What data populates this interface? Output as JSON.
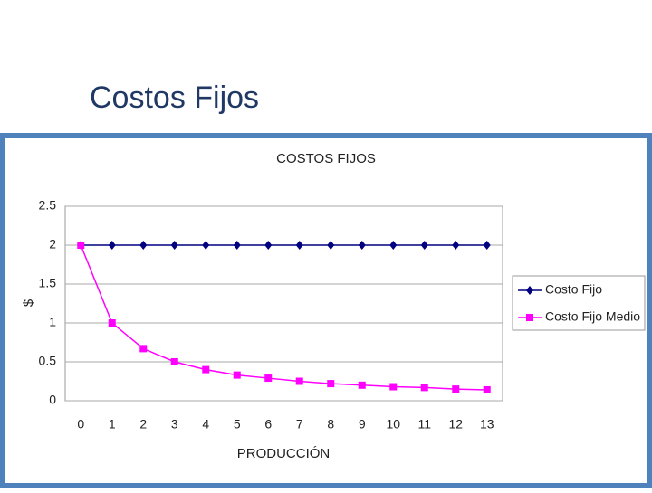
{
  "slide_title": "Costos Fijos",
  "chart_data": {
    "type": "line",
    "title": "COSTOS FIJOS",
    "x_label": "PRODUCCIÓN",
    "y_label": "$",
    "categories": [
      "0",
      "1",
      "2",
      "3",
      "4",
      "5",
      "6",
      "7",
      "8",
      "9",
      "10",
      "11",
      "12",
      "13"
    ],
    "series": [
      {
        "name": "Costo Fijo",
        "color": "#000080",
        "marker": "diamond",
        "values": [
          2,
          2,
          2,
          2,
          2,
          2,
          2,
          2,
          2,
          2,
          2,
          2,
          2,
          2
        ]
      },
      {
        "name": "Costo Fijo Medio",
        "color": "#ff00ff",
        "marker": "square",
        "values": [
          2,
          1,
          0.67,
          0.5,
          0.4,
          0.33,
          0.29,
          0.25,
          0.22,
          0.2,
          0.18,
          0.17,
          0.15,
          0.14
        ]
      }
    ],
    "ylim": [
      0,
      2.5
    ],
    "yticks": [
      0,
      0.5,
      1,
      1.5,
      2,
      2.5
    ],
    "grid": true,
    "legend": "right"
  }
}
